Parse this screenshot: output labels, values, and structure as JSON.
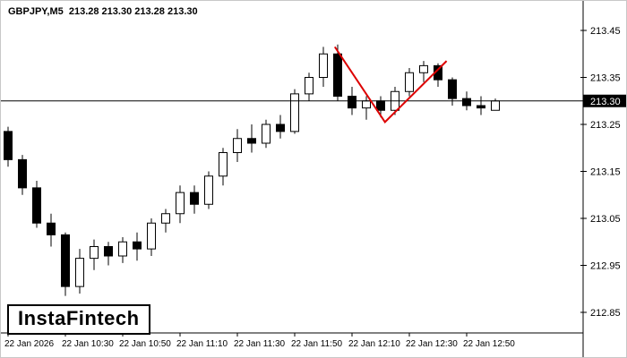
{
  "header": {
    "title": "GBPJPY,M5  213.28 213.30 213.28 213.30"
  },
  "logo": {
    "text": "InstaFintech"
  },
  "colors": {
    "background": "#ffffff",
    "bull_body": "#ffffff",
    "bear_body": "#000000",
    "wick": "#000000",
    "axis_line": "#000000",
    "axis_text": "#000000",
    "zigzag": "#dd0000",
    "current_price_bg": "#000000",
    "current_price_fg": "#ffffff"
  },
  "chart_data": {
    "type": "candlestick",
    "symbol": "GBPJPY",
    "timeframe": "M5",
    "date": "22 Jan 2026",
    "ohlc_display": {
      "open": "213.28",
      "high": "213.30",
      "low": "213.28",
      "close": "213.30"
    },
    "current_price": 213.3,
    "current_price_label": "213.30",
    "y_axis": {
      "side": "right",
      "range": [
        212.8,
        213.5
      ],
      "ticks": [
        {
          "value": 213.45,
          "label": "213.45"
        },
        {
          "value": 213.35,
          "label": "213.35"
        },
        {
          "value": 213.25,
          "label": "213.25"
        },
        {
          "value": 213.15,
          "label": "213.15"
        },
        {
          "value": 213.05,
          "label": "213.05"
        },
        {
          "value": 212.95,
          "label": "212.95"
        },
        {
          "value": 212.85,
          "label": "212.85"
        }
      ]
    },
    "x_axis": {
      "labels": [
        {
          "label": "22 Jan 2026",
          "candle_index": 0
        },
        {
          "label": "22 Jan 10:30",
          "candle_index": 4
        },
        {
          "label": "22 Jan 10:50",
          "candle_index": 8
        },
        {
          "label": "22 Jan 11:10",
          "candle_index": 12
        },
        {
          "label": "22 Jan 11:30",
          "candle_index": 16
        },
        {
          "label": "22 Jan 11:50",
          "candle_index": 20
        },
        {
          "label": "22 Jan 12:10",
          "candle_index": 24
        },
        {
          "label": "22 Jan 12:30",
          "candle_index": 28
        },
        {
          "label": "22 Jan 12:50",
          "candle_index": 32
        }
      ]
    },
    "candles": [
      {
        "time": "10:10",
        "o": 213.235,
        "h": 213.245,
        "l": 213.16,
        "c": 213.175
      },
      {
        "time": "10:15",
        "o": 213.175,
        "h": 213.185,
        "l": 213.1,
        "c": 213.115
      },
      {
        "time": "10:20",
        "o": 213.115,
        "h": 213.13,
        "l": 213.03,
        "c": 213.04
      },
      {
        "time": "10:25",
        "o": 213.04,
        "h": 213.06,
        "l": 212.99,
        "c": 213.015
      },
      {
        "time": "10:30",
        "o": 213.015,
        "h": 213.02,
        "l": 212.885,
        "c": 212.905
      },
      {
        "time": "10:35",
        "o": 212.905,
        "h": 212.985,
        "l": 212.89,
        "c": 212.965
      },
      {
        "time": "10:40",
        "o": 212.965,
        "h": 213.005,
        "l": 212.94,
        "c": 212.99
      },
      {
        "time": "10:45",
        "o": 212.99,
        "h": 213.0,
        "l": 212.95,
        "c": 212.97
      },
      {
        "time": "10:50",
        "o": 212.97,
        "h": 213.01,
        "l": 212.955,
        "c": 213.0
      },
      {
        "time": "10:55",
        "o": 213.0,
        "h": 213.02,
        "l": 212.96,
        "c": 212.985
      },
      {
        "time": "11:00",
        "o": 212.985,
        "h": 213.05,
        "l": 212.97,
        "c": 213.04
      },
      {
        "time": "11:05",
        "o": 213.04,
        "h": 213.07,
        "l": 213.02,
        "c": 213.06
      },
      {
        "time": "11:10",
        "o": 213.06,
        "h": 213.12,
        "l": 213.04,
        "c": 213.105
      },
      {
        "time": "11:15",
        "o": 213.105,
        "h": 213.12,
        "l": 213.06,
        "c": 213.08
      },
      {
        "time": "11:20",
        "o": 213.08,
        "h": 213.15,
        "l": 213.07,
        "c": 213.14
      },
      {
        "time": "11:25",
        "o": 213.14,
        "h": 213.2,
        "l": 213.12,
        "c": 213.19
      },
      {
        "time": "11:30",
        "o": 213.19,
        "h": 213.24,
        "l": 213.17,
        "c": 213.22
      },
      {
        "time": "11:35",
        "o": 213.22,
        "h": 213.25,
        "l": 213.19,
        "c": 213.21
      },
      {
        "time": "11:40",
        "o": 213.21,
        "h": 213.26,
        "l": 213.2,
        "c": 213.25
      },
      {
        "time": "11:45",
        "o": 213.25,
        "h": 213.27,
        "l": 213.22,
        "c": 213.235
      },
      {
        "time": "11:50",
        "o": 213.235,
        "h": 213.325,
        "l": 213.23,
        "c": 213.315
      },
      {
        "time": "11:55",
        "o": 213.315,
        "h": 213.36,
        "l": 213.3,
        "c": 213.35
      },
      {
        "time": "12:00",
        "o": 213.35,
        "h": 213.415,
        "l": 213.33,
        "c": 213.4
      },
      {
        "time": "12:05",
        "o": 213.4,
        "h": 213.42,
        "l": 213.3,
        "c": 213.31
      },
      {
        "time": "12:10",
        "o": 213.31,
        "h": 213.33,
        "l": 213.27,
        "c": 213.285
      },
      {
        "time": "12:15",
        "o": 213.285,
        "h": 213.31,
        "l": 213.26,
        "c": 213.3
      },
      {
        "time": "12:20",
        "o": 213.3,
        "h": 213.31,
        "l": 213.265,
        "c": 213.28
      },
      {
        "time": "12:25",
        "o": 213.28,
        "h": 213.33,
        "l": 213.27,
        "c": 213.32
      },
      {
        "time": "12:30",
        "o": 213.32,
        "h": 213.37,
        "l": 213.31,
        "c": 213.36
      },
      {
        "time": "12:35",
        "o": 213.36,
        "h": 213.385,
        "l": 213.34,
        "c": 213.375
      },
      {
        "time": "12:40",
        "o": 213.375,
        "h": 213.38,
        "l": 213.33,
        "c": 213.345
      },
      {
        "time": "12:45",
        "o": 213.345,
        "h": 213.35,
        "l": 213.29,
        "c": 213.305
      },
      {
        "time": "12:50",
        "o": 213.305,
        "h": 213.32,
        "l": 213.28,
        "c": 213.29
      },
      {
        "time": "12:55",
        "o": 213.29,
        "h": 213.31,
        "l": 213.27,
        "c": 213.285
      },
      {
        "time": "13:00",
        "o": 213.28,
        "h": 213.305,
        "l": 213.28,
        "c": 213.3
      }
    ],
    "overlay_zigzag": {
      "name": "zigzag",
      "color": "#dd0000",
      "points": [
        {
          "candle_index": 22.8,
          "price": 213.415
        },
        {
          "candle_index": 26.3,
          "price": 213.255
        },
        {
          "candle_index": 30.6,
          "price": 213.385
        }
      ]
    }
  }
}
